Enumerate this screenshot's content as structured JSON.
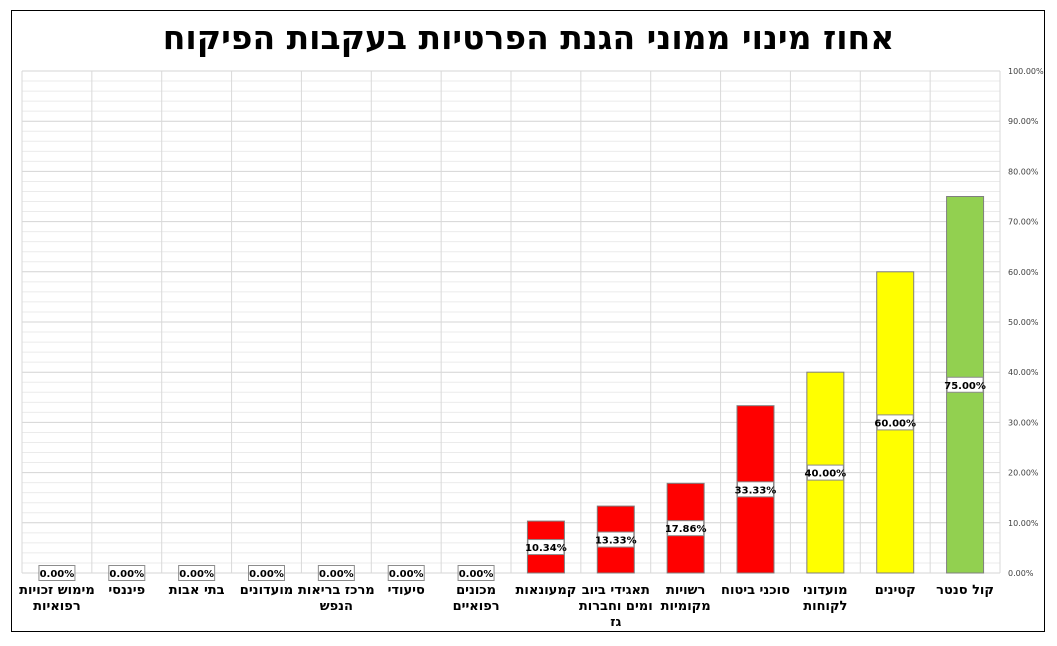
{
  "chart_data": {
    "type": "bar",
    "title": "אחוז מינוי ממוני הגנת הפרטיות בעקבות הפיקוח",
    "xlabel": "",
    "ylabel": "",
    "ylim": [
      0,
      100
    ],
    "y_ticks": [
      "0.00%",
      "10.00%",
      "20.00%",
      "30.00%",
      "40.00%",
      "50.00%",
      "60.00%",
      "70.00%",
      "80.00%",
      "90.00%",
      "100.00%"
    ],
    "grid": true,
    "categories": [
      [
        "קול סנטר"
      ],
      [
        "קטינים"
      ],
      [
        "מועדוני",
        "לקוחות"
      ],
      [
        "סוכני ביטוח"
      ],
      [
        "רשויות",
        "מקומיות"
      ],
      [
        "תאגידי ביוב",
        "ומים וחברות",
        "גז"
      ],
      [
        "קמעונאות"
      ],
      [
        "מכונים",
        "רפואיים"
      ],
      [
        "סיעודי"
      ],
      [
        "מרכז בריאות",
        "הנפש"
      ],
      [
        "מועדונים"
      ],
      [
        "בתי אבות"
      ],
      [
        "פיננסי"
      ],
      [
        "מימוש זכויות",
        "רפואיות"
      ]
    ],
    "values": [
      75.0,
      60.0,
      40.0,
      33.33,
      17.86,
      13.33,
      10.34,
      0.0,
      0.0,
      0.0,
      0.0,
      0.0,
      0.0,
      0.0
    ],
    "data_labels": [
      "75.00%",
      "60.00%",
      "40.00%",
      "33.33%",
      "17.86%",
      "13.33%",
      "10.34%",
      "0.00%",
      "0.00%",
      "0.00%",
      "0.00%",
      "0.00%",
      "0.00%",
      "0.00%"
    ],
    "colors": [
      "#92D050",
      "#FFFF00",
      "#FFFF00",
      "#FF0000",
      "#FF0000",
      "#FF0000",
      "#FF0000",
      "#FF0000",
      "#FF0000",
      "#FF0000",
      "#FF0000",
      "#FF0000",
      "#FF0000",
      "#FF0000"
    ]
  }
}
